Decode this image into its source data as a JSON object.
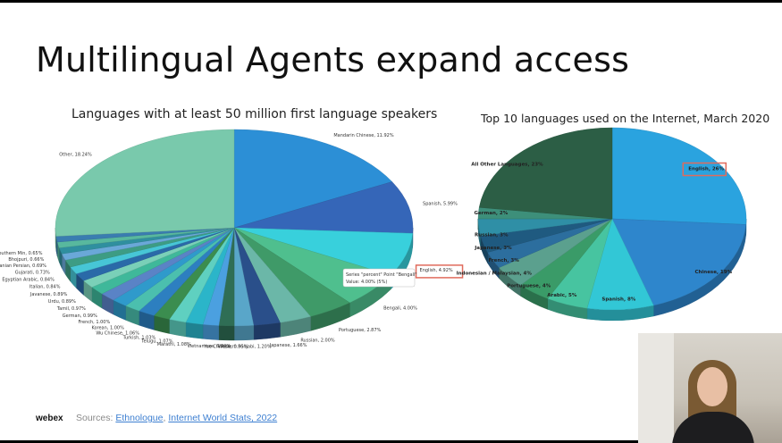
{
  "slide": {
    "title": "Multilingual Agents expand access",
    "logo_text": "webex",
    "sources_prefix": "Sources: ",
    "source_1": "Ethnologue",
    "source_sep": ", ",
    "source_2": "Internet World Stats, 2022"
  },
  "chart_data": [
    {
      "type": "pie",
      "title": "Languages with at least 50 million first language speakers",
      "unit": "%",
      "slices": [
        {
          "label": "Mandarin Chinese",
          "value": 11.92,
          "text": "Mandarin Chinese, 11.92%",
          "color": "#2c8fd6"
        },
        {
          "label": "Spanish",
          "value": 5.99,
          "text": "Spanish, 5.99%",
          "color": "#3566b8"
        },
        {
          "label": "English",
          "value": 4.92,
          "text": "English, 4.92%",
          "color": "#38d0dc"
        },
        {
          "label": "Bengali",
          "value": 4.0,
          "text": "Bengali, 4.00%",
          "color": "#4fbf8e"
        },
        {
          "label": "Portuguese",
          "value": 2.87,
          "text": "Portuguese, 2.87%",
          "color": "#3f9a68"
        },
        {
          "label": "Russian",
          "value": 2.0,
          "text": "Russian, 2.00%",
          "color": "#6bb7a8"
        },
        {
          "label": "Japanese",
          "value": 1.66,
          "text": "Japanese, 1.66%",
          "color": "#2a4f8a"
        },
        {
          "label": "Western Punjabi",
          "value": 1.2,
          "text": "Western Punjabi, 1.20%",
          "color": "#59a6c9"
        },
        {
          "label": "Yue Chinese",
          "value": 0.95,
          "text": "Yue Chinese, 0.95%",
          "color": "#2f6e55"
        },
        {
          "label": "Vietnamese",
          "value": 0.99,
          "text": "Vietnamese, 0.99%",
          "color": "#4ba0e0"
        },
        {
          "label": "Marathi",
          "value": 1.08,
          "text": "Marathi, 1.08%",
          "color": "#2bb5c9"
        },
        {
          "label": "Telugu",
          "value": 1.07,
          "text": "Telugu, 1.07%",
          "color": "#5fd0c0"
        },
        {
          "label": "Turkish",
          "value": 1.03,
          "text": "Turkish, 1.03%",
          "color": "#3b8d4f"
        },
        {
          "label": "Wu Chinese",
          "value": 1.06,
          "text": "Wu Chinese, 1.06%",
          "color": "#2d7fc0"
        },
        {
          "label": "Korean",
          "value": 1.0,
          "text": "Korean, 1.00%",
          "color": "#4bbfae"
        },
        {
          "label": "French",
          "value": 1.0,
          "text": "French, 1.00%",
          "color": "#2f9acb"
        },
        {
          "label": "German",
          "value": 0.99,
          "text": "German, 0.99%",
          "color": "#5a83c6"
        },
        {
          "label": "Tamil",
          "value": 0.97,
          "text": "Tamil, 0.97%",
          "color": "#3fb89a"
        },
        {
          "label": "Urdu",
          "value": 0.89,
          "text": "Urdu, 0.89%",
          "color": "#7ad0b8"
        },
        {
          "label": "Javanese",
          "value": 0.89,
          "text": "Javanese, 0.89%",
          "color": "#2a6aa8"
        },
        {
          "label": "Italian",
          "value": 0.84,
          "text": "Italian, 0.84%",
          "color": "#47c6d6"
        },
        {
          "label": "Egyptian Arabic",
          "value": 0.84,
          "text": "Egyptian Arabic, 0.84%",
          "color": "#3d9c84"
        },
        {
          "label": "Gujarati",
          "value": 0.73,
          "text": "Gujarati, 0.73%",
          "color": "#6aa8d8"
        },
        {
          "label": "Iranian Persian",
          "value": 0.69,
          "text": "Iranian Persian, 0.69%",
          "color": "#2f8f9f"
        },
        {
          "label": "Bhojpuri",
          "value": 0.66,
          "text": "Bhojpuri, 0.66%",
          "color": "#58b89e"
        },
        {
          "label": "Southern Min",
          "value": 0.65,
          "text": "Southern Min, 0.65%",
          "color": "#3a7db0"
        },
        {
          "label": "Other",
          "value": 18.24,
          "text": "Other, 18.24%",
          "color": "#79c9ac"
        }
      ],
      "tooltip": {
        "line1": "Series \"percent\" Point \"Bengali\"",
        "line2": "Value: 4.00% (5%)"
      },
      "highlight": "English"
    },
    {
      "type": "pie",
      "title": "Top 10 languages used on the Internet, March 2020",
      "unit": "%",
      "slices": [
        {
          "label": "English",
          "value": 26,
          "text": "English, 26%",
          "color": "#2aa3df"
        },
        {
          "label": "Chinese",
          "value": 19,
          "text": "Chinese, 19%",
          "color": "#2e86cc"
        },
        {
          "label": "Spanish",
          "value": 8,
          "text": "Spanish, 8%",
          "color": "#32c7d6"
        },
        {
          "label": "Arabic",
          "value": 5,
          "text": "Arabic, 5%",
          "color": "#47c4a0"
        },
        {
          "label": "Portuguese",
          "value": 4,
          "text": "Portuguese, 4%",
          "color": "#3a9b68"
        },
        {
          "label": "Indonesian / Malaysian",
          "value": 4,
          "text": "Indonesian / Malaysian, 4%",
          "color": "#5ba08e"
        },
        {
          "label": "French",
          "value": 3,
          "text": "French, 3%",
          "color": "#2c6e9e"
        },
        {
          "label": "Japanese",
          "value": 3,
          "text": "Japanese, 3%",
          "color": "#1f5a80"
        },
        {
          "label": "Russian",
          "value": 3,
          "text": "Russian, 3%",
          "color": "#2f8fa6"
        },
        {
          "label": "German",
          "value": 2,
          "text": "German, 2%",
          "color": "#3d8f7a"
        },
        {
          "label": "All Other Languages",
          "value": 23,
          "text": "All Other Languages, 23%",
          "color": "#2c5e45"
        }
      ],
      "highlight": "English"
    }
  ]
}
